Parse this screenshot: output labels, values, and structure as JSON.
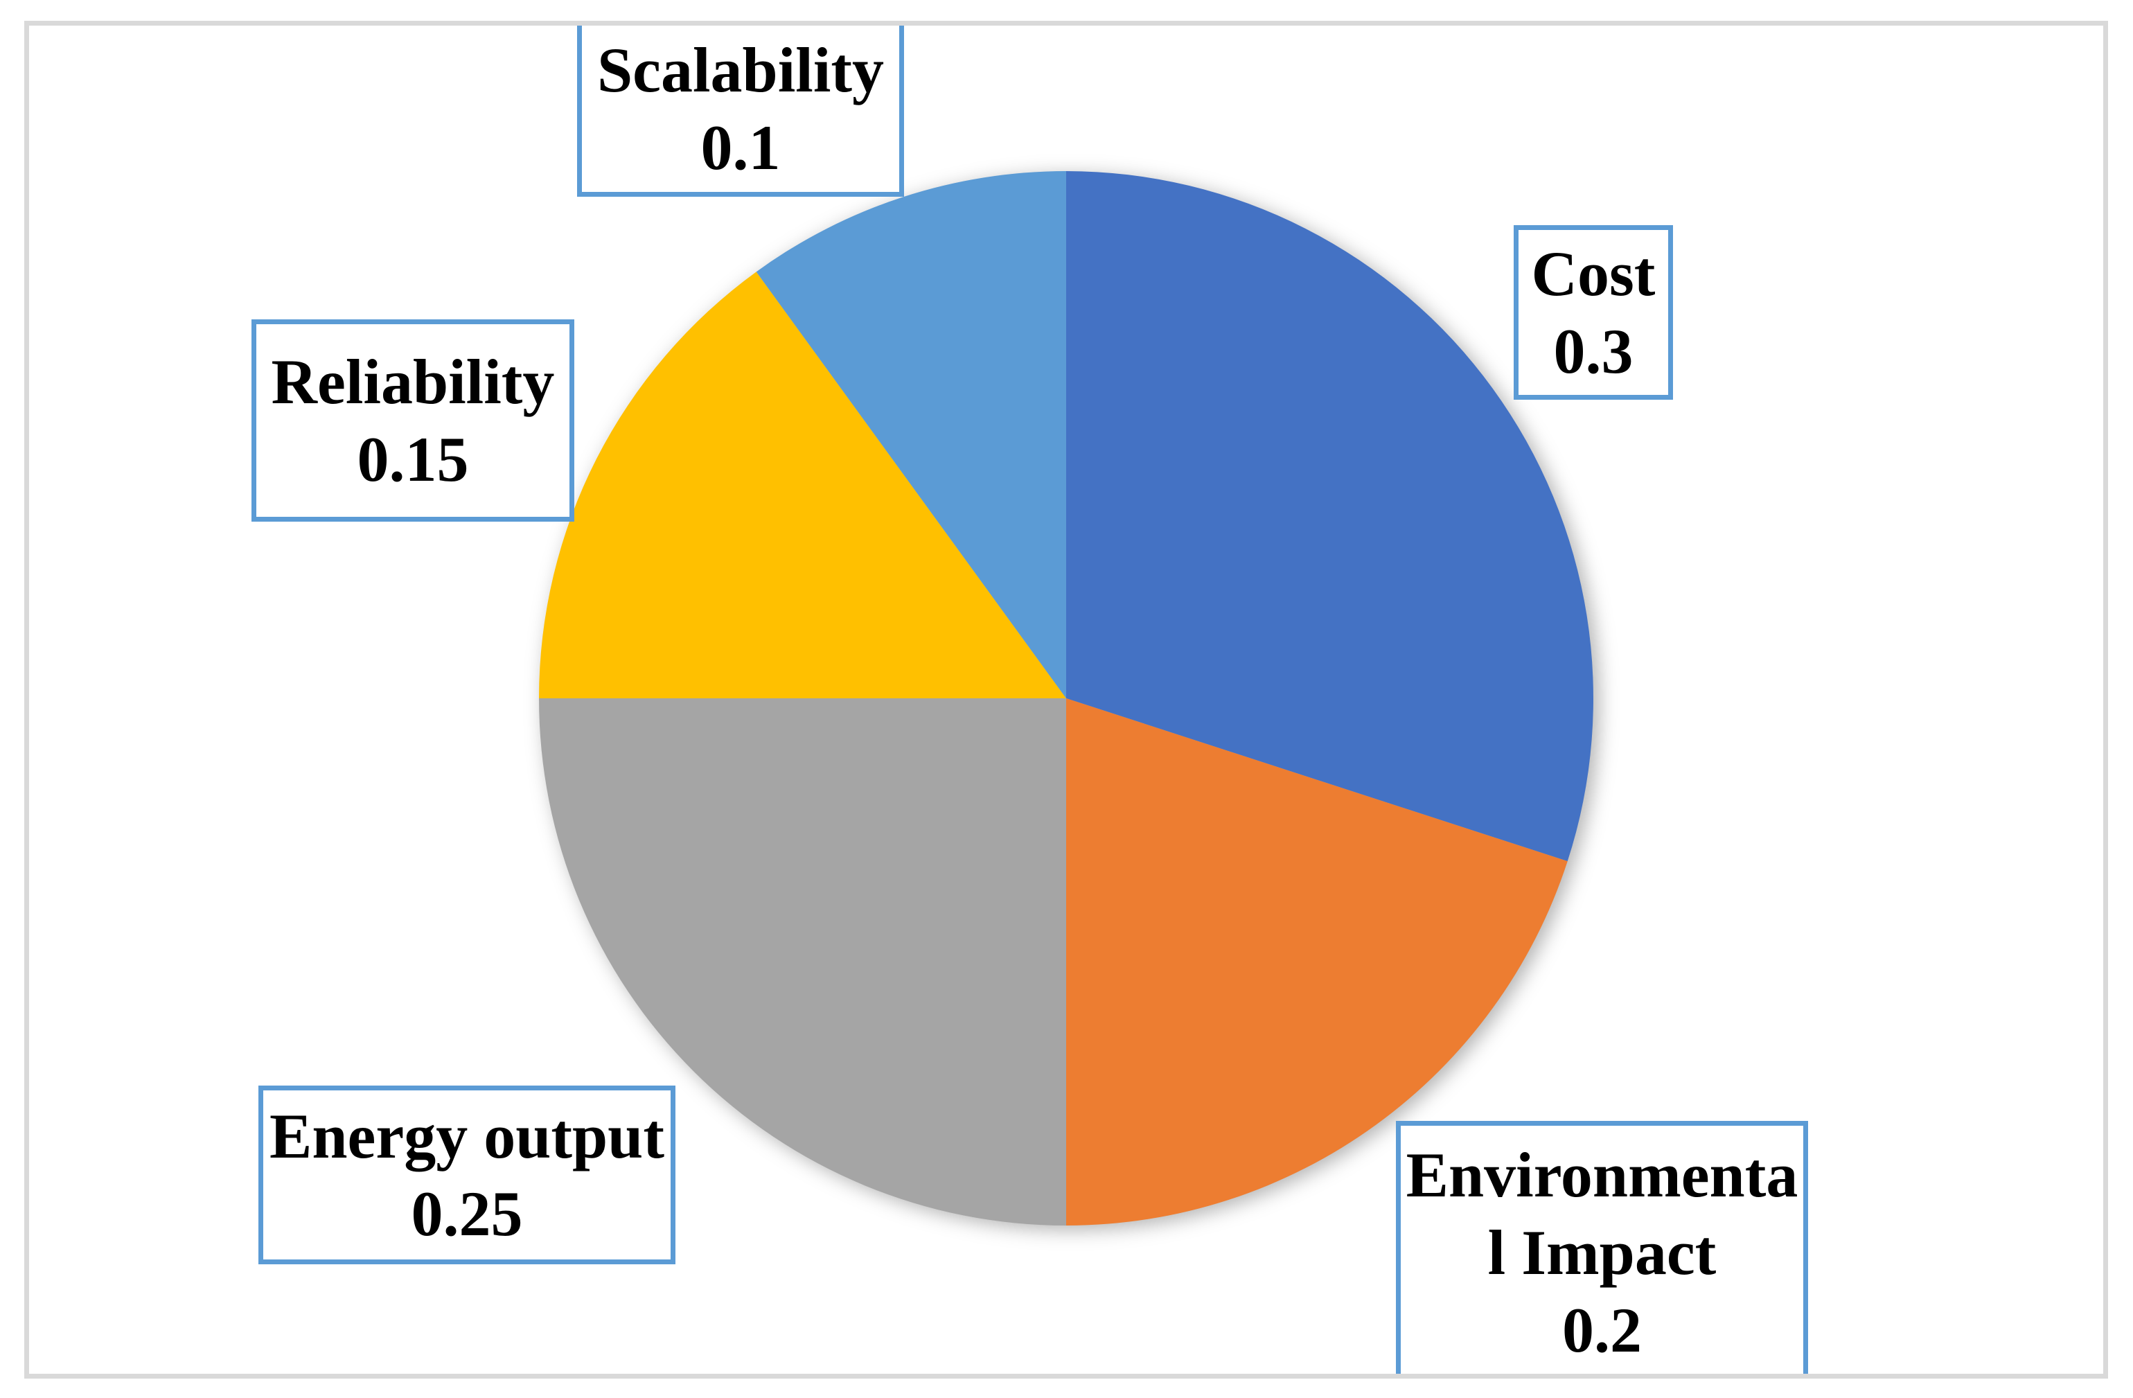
{
  "chart_data": {
    "type": "pie",
    "title": "",
    "categories": [
      "Cost",
      "Environmental Impact",
      "Energy output",
      "Reliability",
      "Scalability"
    ],
    "values": [
      0.3,
      0.2,
      0.25,
      0.15,
      0.1
    ],
    "colors": [
      "#4472C4",
      "#ED7D31",
      "#A5A5A5",
      "#FFC000",
      "#5B9BD5"
    ],
    "start_angle_deg": 0,
    "direction": "clockwise",
    "legend_position": "none",
    "data_labels": [
      {
        "id": "cost",
        "lines": [
          "Cost",
          "0.3"
        ]
      },
      {
        "id": "environmental-impact",
        "lines": [
          "Environmenta",
          "l Impact",
          "0.2"
        ]
      },
      {
        "id": "energy-output",
        "lines": [
          "Energy output",
          "0.25"
        ]
      },
      {
        "id": "reliability",
        "lines": [
          "Reliability",
          "0.15"
        ]
      },
      {
        "id": "scalability",
        "lines": [
          "Scalability",
          "0.1"
        ]
      }
    ]
  },
  "style": {
    "page_background": "#FFFFFF",
    "chart_background": "#FFFFFF",
    "frame_border_color": "#D9D9D9",
    "callout_border_color": "#5B9BD5",
    "label_text_color": "#000000"
  }
}
